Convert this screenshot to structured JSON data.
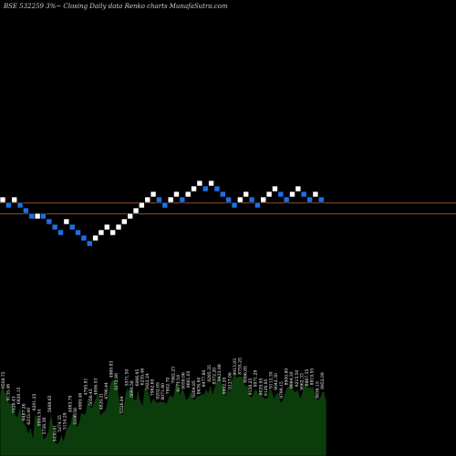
{
  "chart_data": {
    "type": "renko",
    "title": "BSE 532259 3%~  Closing Daily data  Renko  charts MunafaSutra.com",
    "brick_step": 1,
    "reference_levels": [
      222,
      234
    ],
    "bricks": [
      {
        "dir": "up",
        "level": 219
      },
      {
        "dir": "down",
        "level": 225
      },
      {
        "dir": "up",
        "level": 219
      },
      {
        "dir": "down",
        "level": 225
      },
      {
        "dir": "down",
        "level": 231
      },
      {
        "dir": "down",
        "level": 237
      },
      {
        "dir": "up",
        "level": 237
      },
      {
        "dir": "down",
        "level": 237
      },
      {
        "dir": "down",
        "level": 243
      },
      {
        "dir": "down",
        "level": 249
      },
      {
        "dir": "down",
        "level": 255
      },
      {
        "dir": "up",
        "level": 243
      },
      {
        "dir": "down",
        "level": 249
      },
      {
        "dir": "down",
        "level": 255
      },
      {
        "dir": "down",
        "level": 261
      },
      {
        "dir": "down",
        "level": 267
      },
      {
        "dir": "up",
        "level": 261
      },
      {
        "dir": "up",
        "level": 255
      },
      {
        "dir": "up",
        "level": 249
      },
      {
        "dir": "up",
        "level": 255
      },
      {
        "dir": "up",
        "level": 249
      },
      {
        "dir": "up",
        "level": 243
      },
      {
        "dir": "up",
        "level": 237
      },
      {
        "dir": "up",
        "level": 231
      },
      {
        "dir": "up",
        "level": 225
      },
      {
        "dir": "up",
        "level": 219
      },
      {
        "dir": "up",
        "level": 213
      },
      {
        "dir": "down",
        "level": 219
      },
      {
        "dir": "down",
        "level": 225
      },
      {
        "dir": "up",
        "level": 219
      },
      {
        "dir": "up",
        "level": 213
      },
      {
        "dir": "down",
        "level": 219
      },
      {
        "dir": "up",
        "level": 213
      },
      {
        "dir": "up",
        "level": 207
      },
      {
        "dir": "up",
        "level": 201
      },
      {
        "dir": "down",
        "level": 207
      },
      {
        "dir": "up",
        "level": 201
      },
      {
        "dir": "down",
        "level": 207
      },
      {
        "dir": "down",
        "level": 213
      },
      {
        "dir": "down",
        "level": 219
      },
      {
        "dir": "down",
        "level": 225
      },
      {
        "dir": "up",
        "level": 219
      },
      {
        "dir": "up",
        "level": 213
      },
      {
        "dir": "down",
        "level": 219
      },
      {
        "dir": "down",
        "level": 225
      },
      {
        "dir": "up",
        "level": 219
      },
      {
        "dir": "up",
        "level": 213
      },
      {
        "dir": "up",
        "level": 207
      },
      {
        "dir": "down",
        "level": 213
      },
      {
        "dir": "down",
        "level": 219
      },
      {
        "dir": "up",
        "level": 213
      },
      {
        "dir": "up",
        "level": 207
      },
      {
        "dir": "down",
        "level": 213
      },
      {
        "dir": "down",
        "level": 219
      },
      {
        "dir": "up",
        "level": 213
      },
      {
        "dir": "down",
        "level": 219
      }
    ],
    "volume_series": {
      "color": "#0c3c0c",
      "values": [
        74,
        87,
        80,
        74,
        65,
        64,
        62,
        50,
        48,
        61,
        49,
        41,
        36,
        28,
        36,
        22,
        53,
        47,
        39,
        34,
        21,
        24,
        31,
        51,
        43,
        17,
        15,
        18,
        27,
        19,
        30,
        36,
        38,
        51,
        55,
        36,
        40,
        54,
        51,
        52,
        72,
        61,
        59,
        67,
        72,
        79,
        50,
        54,
        55,
        67,
        86,
        93,
        92,
        94,
        78,
        57,
        50,
        73,
        83,
        80,
        86,
        69,
        68,
        83,
        68,
        62,
        84,
        80,
        78,
        65,
        71,
        67,
        65,
        67,
        66,
        66,
        64,
        73,
        74,
        72,
        86,
        99,
        76,
        81,
        79,
        69,
        71,
        81,
        70,
        69,
        74,
        73,
        76,
        75,
        82,
        77,
        88,
        76,
        85,
        92,
        98,
        89,
        85,
        73,
        83,
        79,
        95,
        99,
        96,
        97,
        97,
        96,
        85,
        87,
        73,
        72,
        80,
        82,
        75,
        80,
        72,
        70,
        71,
        85,
        80,
        71,
        76,
        78,
        66,
        68,
        78,
        84,
        85,
        91,
        80,
        78,
        82,
        71,
        78,
        89,
        87,
        83,
        84,
        84,
        74,
        68,
        71,
        78,
        79,
        66
      ]
    },
    "volume_labels": [
      {
        "text": "9508.75"
      },
      {
        "text": "9135.46"
      },
      {
        "text": "7426.43"
      },
      {
        "text": "6920.15"
      },
      {
        "text": "6487.26"
      },
      {
        "text": "6233.49"
      },
      {
        "text": "6201.25"
      },
      {
        "text": "5869.34"
      },
      {
        "text": "5726.38"
      },
      {
        "text": "5698.65"
      },
      {
        "text": "5430.61"
      },
      {
        "text": "5274.35"
      },
      {
        "text": "5154.29"
      },
      {
        "text": "4983.79"
      },
      {
        "text": "5106.56"
      },
      {
        "text": "4969.46"
      },
      {
        "text": "4795.81"
      },
      {
        "text": "5056.45"
      },
      {
        "text": "4906.53"
      },
      {
        "text": "4829.21"
      },
      {
        "text": "4796.44"
      },
      {
        "text": "4969.83"
      },
      {
        "text": "5172.89"
      },
      {
        "text": "5326.84"
      },
      {
        "text": "5571.50"
      },
      {
        "text": "5693.58"
      },
      {
        "text": "6066.95"
      },
      {
        "text": "6235.46"
      },
      {
        "text": "5922.24"
      },
      {
        "text": "7962.65"
      },
      {
        "text": "8202.65"
      },
      {
        "text": "8071.80"
      },
      {
        "text": "7902.70"
      },
      {
        "text": "7962.23"
      },
      {
        "text": "9171.18"
      },
      {
        "text": "9059.06"
      },
      {
        "text": "8661.05"
      },
      {
        "text": "9264.85"
      },
      {
        "text": "8676.60"
      },
      {
        "text": "8477.80"
      },
      {
        "text": "8295.35"
      },
      {
        "text": "8372.20"
      },
      {
        "text": "8423.98"
      },
      {
        "text": "9002.20"
      },
      {
        "text": "9127.06"
      },
      {
        "text": "8913.93"
      },
      {
        "text": "8755.25"
      },
      {
        "text": "8996.85"
      },
      {
        "text": "9158.25"
      },
      {
        "text": "8971.28"
      },
      {
        "text": "9029.95"
      },
      {
        "text": "9126.85"
      },
      {
        "text": "9112.30"
      },
      {
        "text": "9042.30"
      },
      {
        "text": "8799.15"
      },
      {
        "text": "8900.80"
      },
      {
        "text": "9084.30"
      },
      {
        "text": "9215.50"
      },
      {
        "text": "9062.33"
      },
      {
        "text": "8867.35"
      },
      {
        "text": "8819.55"
      },
      {
        "text": "8836.15"
      },
      {
        "text": "8952.09"
      }
    ]
  }
}
